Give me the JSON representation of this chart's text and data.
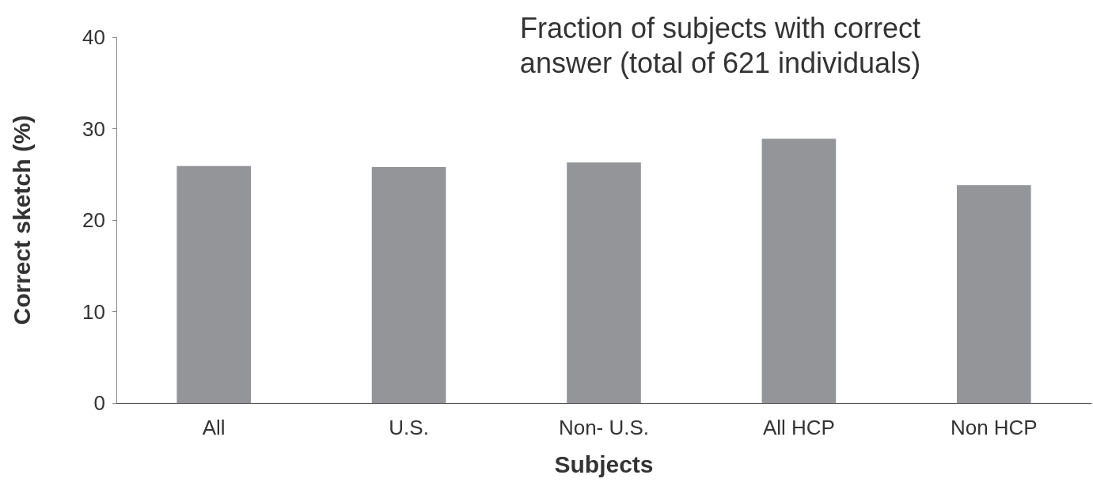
{
  "chart_data": {
    "type": "bar",
    "title": "Fraction of subjects with correct\nanswer (total of 621 individuals)",
    "xlabel": "Subjects",
    "ylabel": "Correct sketch (%)",
    "categories": [
      "All",
      "U.S.",
      "Non- U.S.",
      "All HCP",
      "Non HCP"
    ],
    "values": [
      25.9,
      25.8,
      26.3,
      28.9,
      23.8
    ],
    "color": "#939598",
    "ylim": [
      0,
      40
    ],
    "yticks": [
      0,
      10,
      20,
      30,
      40
    ],
    "grid": false
  }
}
